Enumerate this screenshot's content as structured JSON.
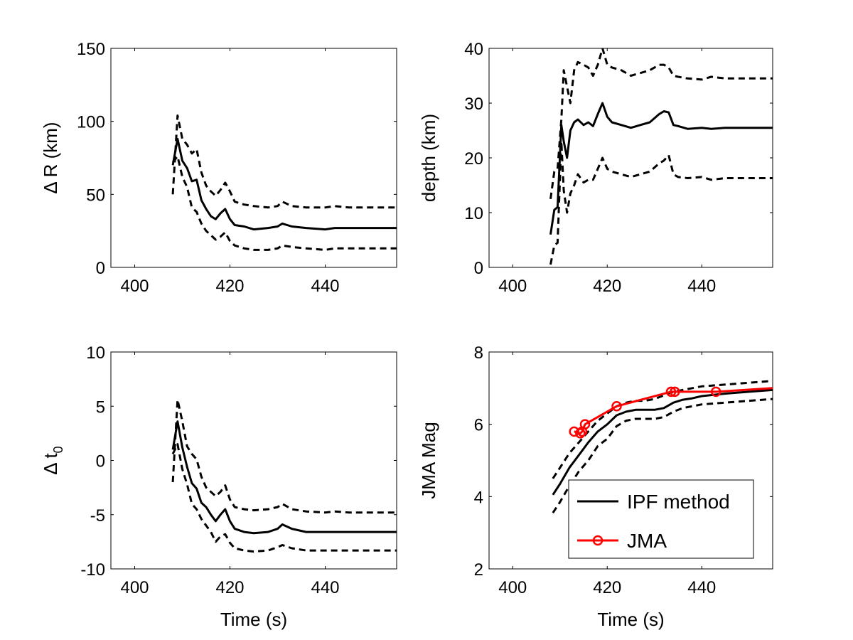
{
  "chart_data": [
    {
      "type": "line",
      "panel": "top-left",
      "xlabel": "",
      "ylabel": "Δ R (km)",
      "xlim": [
        395,
        455
      ],
      "ylim": [
        0,
        150
      ],
      "xticks": [
        400,
        420,
        440
      ],
      "yticks": [
        0,
        50,
        100,
        150
      ],
      "xtick_labels": [
        "400",
        "420",
        "440"
      ],
      "ytick_labels": [
        "0",
        "50",
        "100",
        "150"
      ],
      "grid": false,
      "series": [
        {
          "style": "dashed",
          "color": "#000000",
          "x": [
            408,
            409,
            410,
            411,
            412,
            413,
            414,
            415,
            416,
            417,
            418,
            419,
            420,
            421,
            423,
            425,
            428,
            430,
            431,
            433,
            436,
            440,
            442,
            445,
            450,
            455
          ],
          "y": [
            50,
            104,
            88,
            84,
            78,
            81,
            65,
            56,
            52,
            49,
            53,
            58,
            52,
            45,
            43,
            42,
            41,
            42,
            45,
            42,
            41,
            41,
            42,
            41,
            41,
            41
          ]
        },
        {
          "style": "solid",
          "color": "#000000",
          "x": [
            408,
            409,
            410,
            411,
            412,
            413,
            414,
            415,
            416,
            417,
            418,
            419,
            420,
            421,
            423,
            425,
            428,
            430,
            431,
            433,
            436,
            440,
            442,
            445,
            450,
            455
          ],
          "y": [
            70,
            88,
            73,
            68,
            59,
            60,
            46,
            40,
            35,
            33,
            37,
            40,
            33,
            29,
            28,
            26,
            27,
            28,
            30,
            28,
            27,
            26,
            27,
            27,
            27,
            27
          ]
        },
        {
          "style": "dashed",
          "color": "#000000",
          "x": [
            408,
            409,
            410,
            411,
            412,
            413,
            414,
            415,
            416,
            417,
            418,
            419,
            420,
            421,
            423,
            425,
            428,
            430,
            431,
            433,
            436,
            440,
            442,
            445,
            450,
            455
          ],
          "y": [
            72,
            76,
            62,
            55,
            41,
            38,
            30,
            25,
            22,
            19,
            21,
            24,
            18,
            15,
            13,
            12,
            12,
            13,
            15,
            14,
            13,
            12,
            13,
            13,
            13,
            13
          ]
        }
      ]
    },
    {
      "type": "line",
      "panel": "top-right",
      "xlabel": "",
      "ylabel": "depth (km)",
      "xlim": [
        395,
        455
      ],
      "ylim": [
        0,
        40
      ],
      "xticks": [
        400,
        420,
        440
      ],
      "yticks": [
        0,
        10,
        20,
        30,
        40
      ],
      "xtick_labels": [
        "400",
        "420",
        "440"
      ],
      "ytick_labels": [
        "0",
        "10",
        "20",
        "30",
        "40"
      ],
      "grid": false,
      "series": [
        {
          "style": "dashed",
          "color": "#000000",
          "x": [
            408,
            408.8,
            409.5,
            410.3,
            410.8,
            411.5,
            412.2,
            413,
            413.8,
            415,
            416,
            417,
            418,
            419,
            420,
            421,
            423,
            425,
            427,
            429,
            431,
            432,
            433,
            434,
            435,
            437,
            440,
            442,
            445,
            450,
            455
          ],
          "y": [
            12.5,
            17.5,
            18,
            27,
            36,
            33,
            30,
            36,
            37.5,
            37,
            36.5,
            35,
            37,
            40,
            37,
            36.5,
            36,
            35,
            35.5,
            36,
            37,
            37,
            36.5,
            35,
            34.8,
            34.5,
            34.3,
            34.8,
            34.5,
            34.5,
            34.5
          ]
        },
        {
          "style": "solid",
          "color": "#000000",
          "x": [
            408,
            408.8,
            409.5,
            410.3,
            410.8,
            411.5,
            412.2,
            413,
            413.8,
            415,
            416,
            417,
            418,
            419,
            420,
            421,
            423,
            425,
            427,
            429,
            431,
            432,
            433,
            434,
            435,
            437,
            440,
            442,
            445,
            450,
            455
          ],
          "y": [
            6,
            10.5,
            11,
            26,
            23,
            20,
            25,
            26.5,
            27,
            26,
            26.5,
            25.8,
            28,
            30,
            27.5,
            26.5,
            26,
            25.5,
            26,
            26.5,
            28,
            28.5,
            28.3,
            26,
            25.8,
            25.3,
            25.5,
            25.3,
            25.5,
            25.5,
            25.5
          ]
        },
        {
          "style": "dashed",
          "color": "#000000",
          "x": [
            408,
            408.8,
            409.5,
            410.3,
            410.8,
            411.5,
            412.2,
            413,
            413.8,
            415,
            416,
            417,
            418,
            419,
            420,
            421,
            423,
            425,
            427,
            429,
            431,
            432,
            433,
            434,
            435,
            437,
            440,
            442,
            445,
            450,
            455
          ],
          "y": [
            0.5,
            4,
            4.5,
            23,
            14,
            10,
            13.5,
            15,
            17,
            15.5,
            16,
            16,
            18,
            20,
            18,
            17.5,
            17,
            16.5,
            17,
            17.5,
            19,
            19.5,
            20.5,
            17,
            16.5,
            16.3,
            16.5,
            16,
            16.3,
            16.3,
            16.3
          ]
        }
      ]
    },
    {
      "type": "line",
      "panel": "bottom-left",
      "xlabel": "Time (s)",
      "ylabel": "Δ t",
      "ylabel_sub": "0",
      "xlim": [
        395,
        455
      ],
      "ylim": [
        -10,
        10
      ],
      "xticks": [
        400,
        420,
        440
      ],
      "yticks": [
        -10,
        -5,
        0,
        5,
        10
      ],
      "xtick_labels": [
        "400",
        "420",
        "440"
      ],
      "ytick_labels": [
        "-10",
        "-5",
        "0",
        "5",
        "10"
      ],
      "grid": false,
      "series": [
        {
          "style": "dashed",
          "color": "#000000",
          "x": [
            408,
            409,
            410,
            411,
            412,
            413,
            414,
            415,
            416,
            417,
            418,
            419,
            420,
            421,
            423,
            425,
            428,
            430,
            431,
            433,
            436,
            440,
            442,
            445,
            450,
            455
          ],
          "y": [
            -2,
            5.6,
            3.6,
            1.3,
            0.6,
            0.1,
            -1.5,
            -2.5,
            -2.9,
            -3.3,
            -2.9,
            -2.3,
            -3.6,
            -4.3,
            -4.5,
            -4.6,
            -4.5,
            -4.3,
            -4,
            -4.5,
            -4.7,
            -4.8,
            -4.7,
            -4.8,
            -4.8,
            -4.8
          ]
        },
        {
          "style": "solid",
          "color": "#000000",
          "x": [
            408,
            409,
            410,
            411,
            412,
            413,
            414,
            415,
            416,
            417,
            418,
            419,
            420,
            421,
            423,
            425,
            428,
            430,
            431,
            433,
            436,
            440,
            442,
            445,
            450,
            455
          ],
          "y": [
            1,
            3.6,
            1.2,
            -0.6,
            -2.1,
            -2.6,
            -3.9,
            -4.3,
            -5,
            -5.6,
            -5,
            -4.5,
            -5.6,
            -6.3,
            -6.6,
            -6.7,
            -6.6,
            -6.3,
            -5.9,
            -6.3,
            -6.6,
            -6.6,
            -6.6,
            -6.6,
            -6.6,
            -6.6
          ]
        },
        {
          "style": "dashed",
          "color": "#000000",
          "x": [
            408,
            409,
            410,
            411,
            412,
            413,
            414,
            415,
            416,
            417,
            418,
            419,
            420,
            421,
            423,
            425,
            428,
            430,
            431,
            433,
            436,
            440,
            442,
            445,
            450,
            455
          ],
          "y": [
            0.6,
            1.5,
            -0.8,
            -2.2,
            -4,
            -4.5,
            -5.4,
            -6,
            -6.6,
            -7.5,
            -7,
            -6.8,
            -7.6,
            -8.1,
            -8.3,
            -8.4,
            -8.3,
            -8,
            -7.8,
            -8.1,
            -8.3,
            -8.3,
            -8.3,
            -8.3,
            -8.3,
            -8.3
          ]
        }
      ]
    },
    {
      "type": "line",
      "panel": "bottom-right",
      "xlabel": "Time (s)",
      "ylabel": "JMA Mag",
      "xlim": [
        395,
        455
      ],
      "ylim": [
        2,
        8
      ],
      "xticks": [
        400,
        420,
        440
      ],
      "yticks": [
        2,
        4,
        6,
        8
      ],
      "xtick_labels": [
        "400",
        "420",
        "440"
      ],
      "ytick_labels": [
        "2",
        "4",
        "6",
        "8"
      ],
      "grid": false,
      "legend_placement": "bottom-right",
      "series": [
        {
          "style": "dashed",
          "color": "#000000",
          "x": [
            408.5,
            410,
            412,
            414,
            416,
            418,
            420,
            422,
            424,
            426,
            428,
            430,
            432,
            434,
            436,
            438,
            440,
            445,
            450,
            455
          ],
          "y": [
            4.5,
            4.8,
            5.2,
            5.5,
            5.8,
            6.1,
            6.3,
            6.5,
            6.6,
            6.65,
            6.65,
            6.7,
            6.8,
            6.9,
            6.95,
            7.0,
            7.05,
            7.1,
            7.15,
            7.2
          ]
        },
        {
          "name": "IPF method",
          "style": "solid",
          "color": "#000000",
          "x": [
            408.5,
            410,
            412,
            414,
            416,
            418,
            420,
            422,
            424,
            426,
            428,
            430,
            432,
            434,
            436,
            438,
            440,
            445,
            450,
            455
          ],
          "y": [
            4.05,
            4.35,
            4.8,
            5.15,
            5.5,
            5.8,
            6.0,
            6.25,
            6.35,
            6.4,
            6.4,
            6.4,
            6.45,
            6.6,
            6.68,
            6.72,
            6.78,
            6.85,
            6.9,
            6.95
          ]
        },
        {
          "style": "dashed",
          "color": "#000000",
          "x": [
            408.5,
            410,
            412,
            414,
            416,
            418,
            420,
            422,
            424,
            426,
            428,
            430,
            432,
            434,
            436,
            438,
            440,
            445,
            450,
            455
          ],
          "y": [
            3.55,
            3.85,
            4.3,
            4.7,
            5.0,
            5.4,
            5.6,
            5.95,
            6.1,
            6.15,
            6.15,
            6.15,
            6.2,
            6.35,
            6.45,
            6.5,
            6.55,
            6.6,
            6.65,
            6.7
          ]
        },
        {
          "name": "JMA",
          "style": "solid-circle-markers",
          "color": "#ff0000",
          "x": [
            413,
            414.3,
            414.7,
            415.3,
            422,
            433.5,
            434.3,
            443,
            455
          ],
          "y": [
            5.8,
            5.75,
            5.8,
            6.0,
            6.5,
            6.9,
            6.9,
            6.9,
            7.0
          ],
          "markers_x": [
            413,
            414.3,
            414.7,
            415.3,
            422,
            433.5,
            434.3,
            443
          ],
          "markers_y": [
            5.8,
            5.75,
            5.8,
            6.0,
            6.5,
            6.9,
            6.9,
            6.9
          ]
        }
      ],
      "legend": [
        {
          "label": "IPF method",
          "color": "#000000",
          "marker": "none"
        },
        {
          "label": "JMA",
          "color": "#ff0000",
          "marker": "circle"
        }
      ]
    }
  ]
}
